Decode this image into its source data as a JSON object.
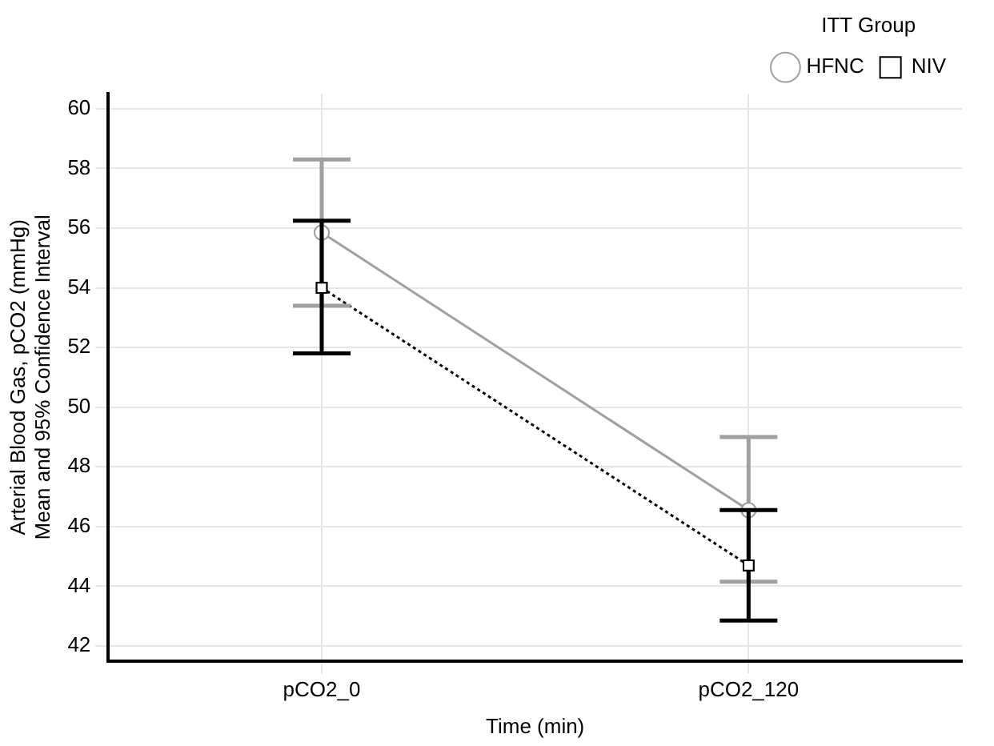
{
  "chart_data": {
    "type": "line",
    "xlabel": "Time (min)",
    "ylabel": "Arterial Blood Gas, pCO2 (mmHg)\nMean and 95% Confidence Interval",
    "legend_title": "ITT Group",
    "categories": [
      "pCO2_0",
      "pCO2_120"
    ],
    "series": [
      {
        "name": "HFNC",
        "color": "#a0a0a0",
        "values": [
          55.85,
          46.55
        ],
        "errors": [
          [
            53.4,
            58.3
          ],
          [
            44.15,
            49.0
          ]
        ],
        "marker": "circle",
        "line_style": "solid"
      },
      {
        "name": "NIV",
        "color": "#000000",
        "values": [
          54.0,
          44.7
        ],
        "errors": [
          [
            51.8,
            56.25
          ],
          [
            42.85,
            46.55
          ]
        ],
        "marker": "square",
        "line_style": "dotted"
      }
    ],
    "ylim": [
      41.5,
      60.5
    ],
    "yticks": [
      42,
      44,
      46,
      48,
      50,
      52,
      54,
      56,
      58,
      60
    ],
    "grid": true,
    "legend": "top right"
  }
}
